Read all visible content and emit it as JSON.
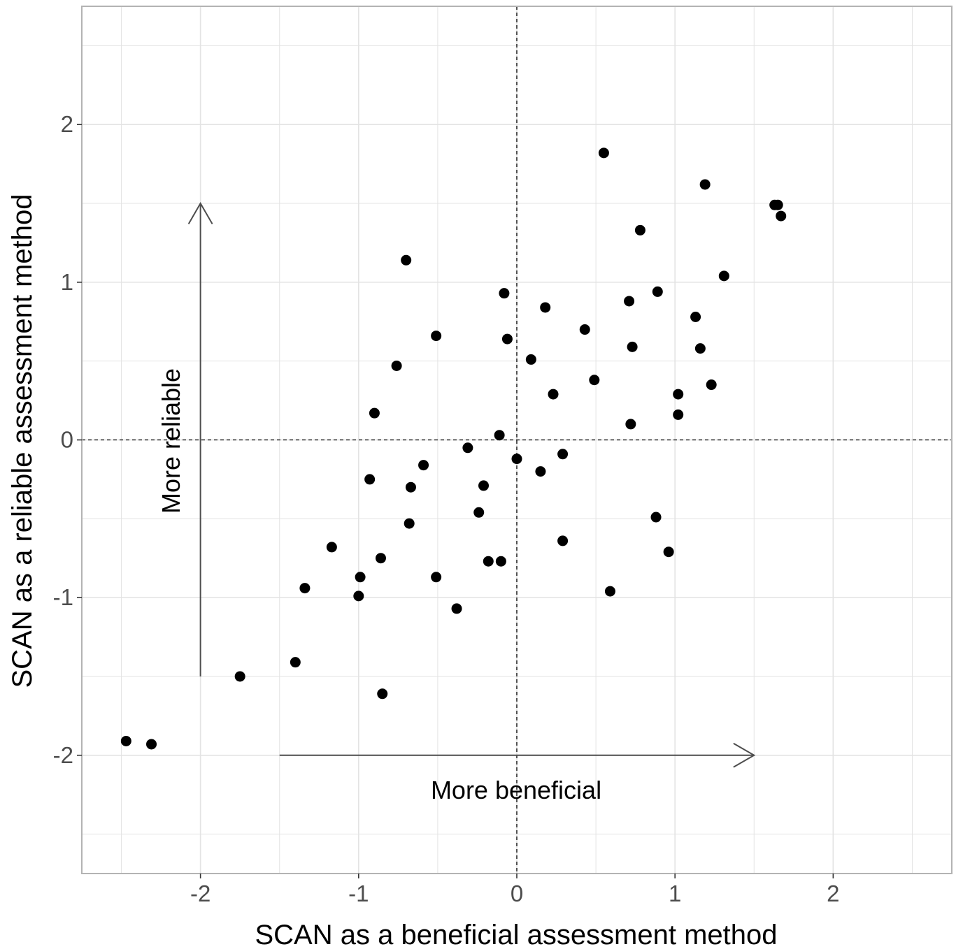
{
  "chart_data": {
    "type": "scatter",
    "title": "",
    "xlabel": "SCAN as a beneficial assessment method",
    "ylabel": "SCAN as a reliable assessment method",
    "xlim": [
      -2.75,
      2.75
    ],
    "ylim": [
      -2.75,
      2.75
    ],
    "x_ticks": [
      -2,
      -1,
      0,
      1,
      2
    ],
    "x_tick_labels": [
      "-2",
      "-1",
      "0",
      "1",
      "2"
    ],
    "y_ticks": [
      -2,
      -1,
      0,
      1,
      2
    ],
    "y_tick_labels": [
      "-2",
      "-1",
      "0",
      "1",
      "2"
    ],
    "grid": true,
    "reference_lines": {
      "x": 0,
      "y": 0,
      "style": "dashed"
    },
    "arrows": [
      {
        "label": "More beneficial",
        "from": [
          -1.5,
          -2.0
        ],
        "to": [
          1.5,
          -2.0
        ]
      },
      {
        "label": "More reliable",
        "from": [
          -2.0,
          -1.5
        ],
        "to": [
          -2.0,
          1.5
        ]
      }
    ],
    "annotations": [
      "More beneficial",
      "More reliable"
    ],
    "colors": {
      "points": "#000000",
      "grid": "#e3e3e3",
      "border": "#b3b3b3",
      "arrow": "#4d4d4d"
    },
    "points": [
      {
        "x": 0.55,
        "y": 1.82
      },
      {
        "x": 1.19,
        "y": 1.62
      },
      {
        "x": 1.63,
        "y": 1.49
      },
      {
        "x": 1.65,
        "y": 1.49
      },
      {
        "x": 1.67,
        "y": 1.42
      },
      {
        "x": 0.78,
        "y": 1.33
      },
      {
        "x": -0.7,
        "y": 1.14
      },
      {
        "x": 1.31,
        "y": 1.04
      },
      {
        "x": -0.08,
        "y": 0.93
      },
      {
        "x": 0.89,
        "y": 0.94
      },
      {
        "x": 0.71,
        "y": 0.88
      },
      {
        "x": 0.18,
        "y": 0.84
      },
      {
        "x": 1.13,
        "y": 0.78
      },
      {
        "x": 0.43,
        "y": 0.7
      },
      {
        "x": -0.51,
        "y": 0.66
      },
      {
        "x": -0.06,
        "y": 0.64
      },
      {
        "x": 0.73,
        "y": 0.59
      },
      {
        "x": 1.16,
        "y": 0.58
      },
      {
        "x": 0.09,
        "y": 0.51
      },
      {
        "x": -0.76,
        "y": 0.47
      },
      {
        "x": 0.49,
        "y": 0.38
      },
      {
        "x": 1.23,
        "y": 0.35
      },
      {
        "x": 0.23,
        "y": 0.29
      },
      {
        "x": 1.02,
        "y": 0.29
      },
      {
        "x": -0.9,
        "y": 0.17
      },
      {
        "x": 1.02,
        "y": 0.16
      },
      {
        "x": 0.72,
        "y": 0.1
      },
      {
        "x": -0.11,
        "y": 0.03
      },
      {
        "x": -0.31,
        "y": -0.05
      },
      {
        "x": 0.0,
        "y": -0.12
      },
      {
        "x": 0.29,
        "y": -0.09
      },
      {
        "x": -0.59,
        "y": -0.16
      },
      {
        "x": 0.15,
        "y": -0.2
      },
      {
        "x": -0.93,
        "y": -0.25
      },
      {
        "x": -0.67,
        "y": -0.3
      },
      {
        "x": -0.21,
        "y": -0.29
      },
      {
        "x": -0.24,
        "y": -0.46
      },
      {
        "x": -0.68,
        "y": -0.53
      },
      {
        "x": 0.88,
        "y": -0.49
      },
      {
        "x": 0.29,
        "y": -0.64
      },
      {
        "x": -1.17,
        "y": -0.68
      },
      {
        "x": 0.96,
        "y": -0.71
      },
      {
        "x": -0.86,
        "y": -0.75
      },
      {
        "x": -0.18,
        "y": -0.77
      },
      {
        "x": -0.1,
        "y": -0.77
      },
      {
        "x": -0.99,
        "y": -0.87
      },
      {
        "x": -0.51,
        "y": -0.87
      },
      {
        "x": -1.34,
        "y": -0.94
      },
      {
        "x": 0.59,
        "y": -0.96
      },
      {
        "x": -1.0,
        "y": -0.99
      },
      {
        "x": -0.38,
        "y": -1.07
      },
      {
        "x": -1.4,
        "y": -1.41
      },
      {
        "x": -1.75,
        "y": -1.5
      },
      {
        "x": -0.85,
        "y": -1.61
      },
      {
        "x": -2.47,
        "y": -1.91
      },
      {
        "x": -2.31,
        "y": -1.93
      }
    ]
  }
}
